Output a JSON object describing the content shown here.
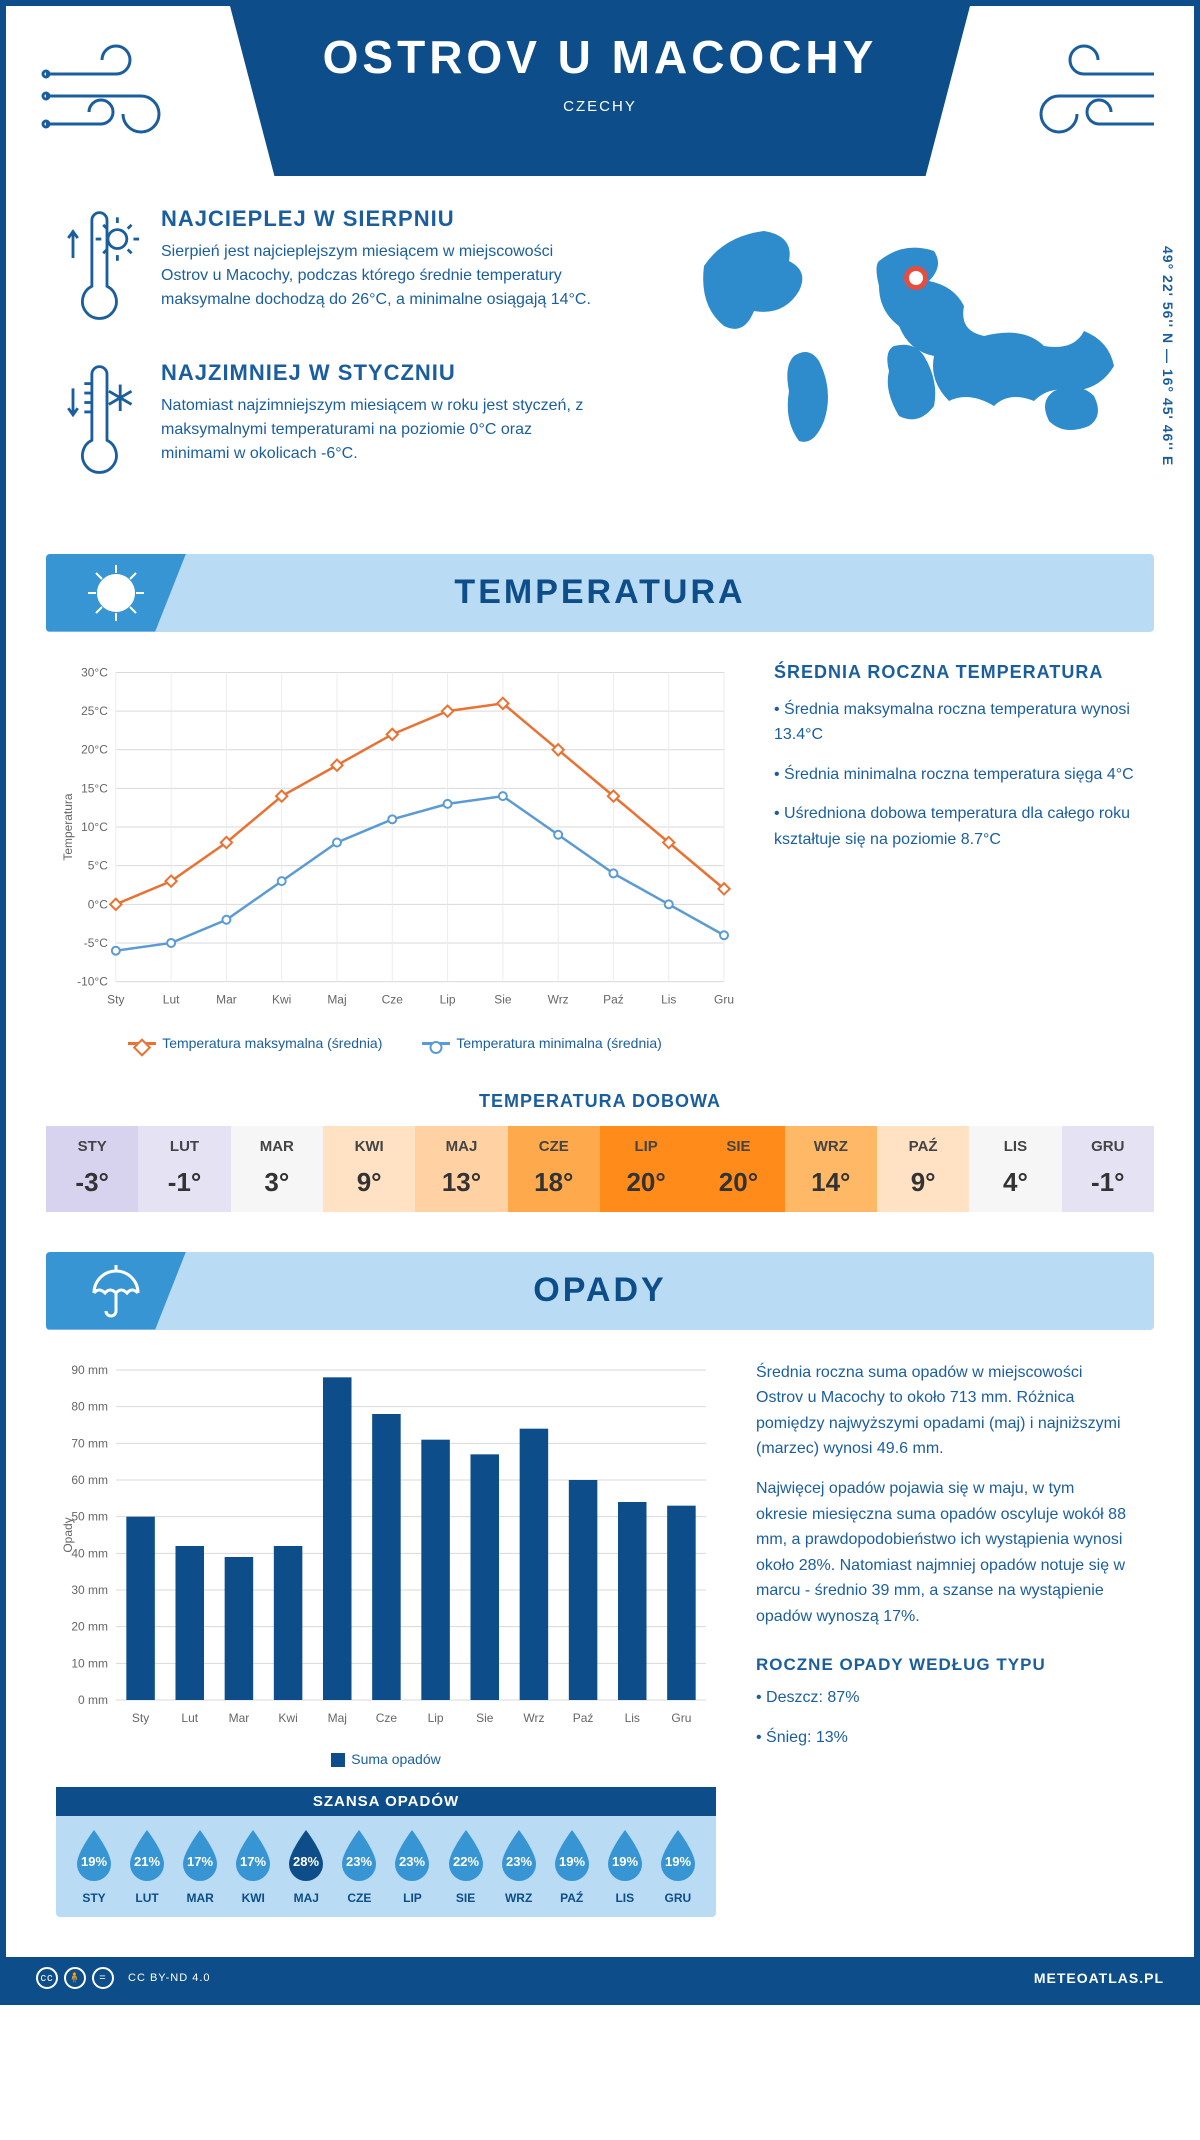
{
  "header": {
    "title": "OSTROV U MACOCHY",
    "country": "CZECHY"
  },
  "coords": "49° 22' 56'' N — 16° 45' 46'' E",
  "facts": {
    "warm": {
      "title": "NAJCIEPLEJ W SIERPNIU",
      "text": "Sierpień jest najcieplejszym miesiącem w miejscowości Ostrov u Macochy, podczas którego średnie temperatury maksymalne dochodzą do 26°C, a minimalne osiągają 14°C."
    },
    "cold": {
      "title": "NAJZIMNIEJ W STYCZNIU",
      "text": "Natomiast najzimniejszym miesiącem w roku jest styczeń, z maksymalnymi temperaturami na poziomie 0°C oraz minimami w okolicach -6°C."
    }
  },
  "sections": {
    "temperature": "TEMPERATURA",
    "precip": "OPADY"
  },
  "months": [
    "Sty",
    "Lut",
    "Mar",
    "Kwi",
    "Maj",
    "Cze",
    "Lip",
    "Sie",
    "Wrz",
    "Paź",
    "Lis",
    "Gru"
  ],
  "months_upper": [
    "STY",
    "LUT",
    "MAR",
    "KWI",
    "MAJ",
    "CZE",
    "LIP",
    "SIE",
    "WRZ",
    "PAŹ",
    "LIS",
    "GRU"
  ],
  "temp_chart": {
    "type": "line",
    "y_label": "Temperatura",
    "y_ticks": [
      -10,
      -5,
      0,
      5,
      10,
      15,
      20,
      25,
      30
    ],
    "y_tick_labels": [
      "-10°C",
      "-5°C",
      "0°C",
      "5°C",
      "10°C",
      "15°C",
      "20°C",
      "25°C",
      "30°C"
    ],
    "series": {
      "max": {
        "label": "Temperatura maksymalna (średnia)",
        "color": "#e97132",
        "values": [
          0,
          3,
          8,
          14,
          18,
          22,
          25,
          26,
          20,
          14,
          8,
          2
        ]
      },
      "min": {
        "label": "Temperatura minimalna (średnia)",
        "color": "#5b9bd5",
        "values": [
          -6,
          -5,
          -2,
          3,
          8,
          11,
          13,
          14,
          9,
          4,
          0,
          -4
        ]
      }
    }
  },
  "avg_box": {
    "title": "ŚREDNIA ROCZNA TEMPERATURA",
    "lines": [
      "• Średnia maksymalna roczna temperatura wynosi 13.4°C",
      "• Średnia minimalna roczna temperatura sięga 4°C",
      "• Uśredniona dobowa temperatura dla całego roku kształtuje się na poziomie 8.7°C"
    ]
  },
  "daily": {
    "title": "TEMPERATURA DOBOWA",
    "values": [
      "-3°",
      "-1°",
      "3°",
      "9°",
      "13°",
      "18°",
      "20°",
      "20°",
      "14°",
      "9°",
      "4°",
      "-1°"
    ],
    "colors": [
      "#d7d3ee",
      "#e5e2f4",
      "#f6f6f6",
      "#ffe1c4",
      "#ffd1a3",
      "#ffa94d",
      "#ff8c1a",
      "#ff8c1a",
      "#ffb866",
      "#ffe1c4",
      "#f6f6f6",
      "#e5e2f4"
    ]
  },
  "precip_chart": {
    "type": "bar",
    "y_label": "Opady",
    "y_ticks": [
      0,
      10,
      20,
      30,
      40,
      50,
      60,
      70,
      80,
      90
    ],
    "y_tick_labels": [
      "0 mm",
      "10 mm",
      "20 mm",
      "30 mm",
      "40 mm",
      "50 mm",
      "60 mm",
      "70 mm",
      "80 mm",
      "90 mm"
    ],
    "values": [
      50,
      42,
      39,
      42,
      88,
      78,
      71,
      67,
      74,
      60,
      54,
      53
    ],
    "bar_color": "#0d4e8a",
    "legend": "Suma opadów"
  },
  "precip_text": {
    "p1": "Średnia roczna suma opadów w miejscowości Ostrov u Macochy to około 713 mm. Różnica pomiędzy najwyższymi opadami (maj) i najniższymi (marzec) wynosi 49.6 mm.",
    "p2": "Najwięcej opadów pojawia się w maju, w tym okresie miesięczna suma opadów oscyluje wokół 88 mm, a prawdopodobieństwo ich wystąpienia wynosi około 28%. Natomiast najmniej opadów notuje się w marcu - średnio 39 mm, a szanse na wystąpienie opadów wynoszą 17%."
  },
  "chance": {
    "title": "SZANSA OPADÓW",
    "values": [
      19,
      21,
      17,
      17,
      28,
      23,
      23,
      22,
      23,
      19,
      19,
      19
    ],
    "highlight_index": 4,
    "drop_fill": "#3895d3",
    "drop_highlight": "#0d4e8a"
  },
  "type": {
    "title": "ROCZNE OPADY WEDŁUG TYPU",
    "rain": "• Deszcz: 87%",
    "snow": "• Śnieg: 13%"
  },
  "footer": {
    "license": "CC BY-ND 4.0",
    "site": "METEOATLAS.PL"
  }
}
